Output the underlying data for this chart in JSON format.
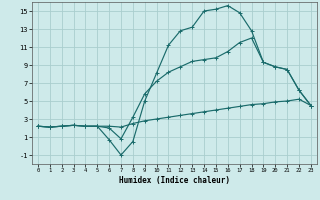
{
  "xlabel": "Humidex (Indice chaleur)",
  "bg_color": "#ceeaea",
  "grid_color": "#aacece",
  "line_color": "#1a6b6b",
  "xlim": [
    -0.5,
    23.5
  ],
  "ylim": [
    -2,
    16
  ],
  "xticks": [
    0,
    1,
    2,
    3,
    4,
    5,
    6,
    7,
    8,
    9,
    10,
    11,
    12,
    13,
    14,
    15,
    16,
    17,
    18,
    19,
    20,
    21,
    22,
    23
  ],
  "yticks": [
    -1,
    1,
    3,
    5,
    7,
    9,
    11,
    13,
    15
  ],
  "line1_x": [
    0,
    1,
    2,
    3,
    4,
    5,
    6,
    7,
    8,
    9,
    10,
    11,
    12,
    13,
    14,
    15,
    16,
    17,
    18,
    19,
    20,
    21,
    22,
    23
  ],
  "line1_y": [
    2.2,
    2.1,
    2.2,
    2.3,
    2.2,
    2.2,
    0.7,
    -1.0,
    0.5,
    5.0,
    8.1,
    11.2,
    12.8,
    13.2,
    15.0,
    15.2,
    15.6,
    14.8,
    12.8,
    9.3,
    8.8,
    8.5,
    6.2,
    4.5
  ],
  "line2_x": [
    0,
    1,
    2,
    3,
    4,
    5,
    6,
    7,
    8,
    9,
    10,
    11,
    12,
    13,
    14,
    15,
    16,
    17,
    18,
    19,
    20,
    21,
    22,
    23
  ],
  "line2_y": [
    2.2,
    2.1,
    2.2,
    2.3,
    2.2,
    2.2,
    2.2,
    2.1,
    2.5,
    2.8,
    3.0,
    3.2,
    3.4,
    3.6,
    3.8,
    4.0,
    4.2,
    4.4,
    4.6,
    4.7,
    4.9,
    5.0,
    5.2,
    4.5
  ],
  "line3_x": [
    0,
    1,
    2,
    3,
    4,
    5,
    6,
    7,
    8,
    9,
    10,
    11,
    12,
    13,
    14,
    15,
    16,
    17,
    18,
    19,
    20,
    21,
    22,
    23
  ],
  "line3_y": [
    2.2,
    2.1,
    2.2,
    2.3,
    2.2,
    2.2,
    2.0,
    0.8,
    3.2,
    5.8,
    7.2,
    8.2,
    8.8,
    9.4,
    9.6,
    9.8,
    10.5,
    11.5,
    12.0,
    9.3,
    8.8,
    8.5,
    6.2,
    4.5
  ],
  "marker": "+"
}
